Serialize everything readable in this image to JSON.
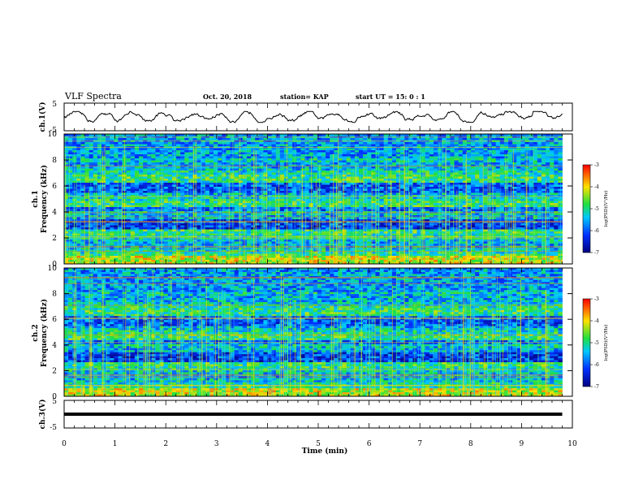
{
  "header": {
    "title": "VLF Spectra",
    "date": "Oct. 20, 2018",
    "station": "station= KAP",
    "start_ut": "start  UT  =    15: 0   : 1"
  },
  "chart_data": [
    {
      "type": "line",
      "panel": "ch1-waveform",
      "ylabel": "ch.1(V)",
      "ylim": [
        -5,
        5
      ],
      "yticks": [
        "5",
        "-5"
      ],
      "xlim": [
        0,
        10
      ],
      "description_values": "noisy waveform fluctuating roughly between -1 and 1 V, ending near 9.8 min"
    },
    {
      "type": "heatmap",
      "panel": "ch1-spectrogram",
      "ylabel_top": "ch.1",
      "ylabel": "Frequency  (kHz)",
      "ylim": [
        0,
        10
      ],
      "yticks": [
        "0",
        "2",
        "4",
        "6",
        "8",
        "10"
      ],
      "xlim": [
        0,
        10
      ],
      "data_end_min": 9.8,
      "colorbar": {
        "label": "log(PSD)(V²/Hz)",
        "range": [
          -7,
          -3
        ],
        "ticks": [
          "-3",
          "-4",
          "-5",
          "-6",
          "-7"
        ]
      }
    },
    {
      "type": "heatmap",
      "panel": "ch2-spectrogram",
      "ylabel_top": "ch.2",
      "ylabel": "Frequency  (kHz)",
      "ylim": [
        0,
        10
      ],
      "yticks": [
        "0",
        "2",
        "4",
        "6",
        "8",
        "10"
      ],
      "xlim": [
        0,
        10
      ],
      "data_end_min": 9.8,
      "colorbar": {
        "label": "log(PSD)(V²/Hz)",
        "range": [
          -7,
          -3
        ],
        "ticks": [
          "-3",
          "-4",
          "-5",
          "-6",
          "-7"
        ]
      }
    },
    {
      "type": "line",
      "panel": "ch3-waveform",
      "ylabel": "ch.3(V)",
      "ylim": [
        -5,
        5
      ],
      "yticks": [
        "5",
        "-5"
      ],
      "xlim": [
        0,
        10
      ],
      "values_constant": 0,
      "data_end_min": 9.8,
      "xlabel": "Time  (min)",
      "xticks": [
        "0",
        "1",
        "2",
        "3",
        "4",
        "5",
        "6",
        "7",
        "8",
        "9",
        "10"
      ]
    }
  ],
  "colors": {
    "min": "#000090",
    "low": "#0050ff",
    "mid": "#10e040",
    "high": "#ffe000",
    "max": "#ff0000"
  }
}
